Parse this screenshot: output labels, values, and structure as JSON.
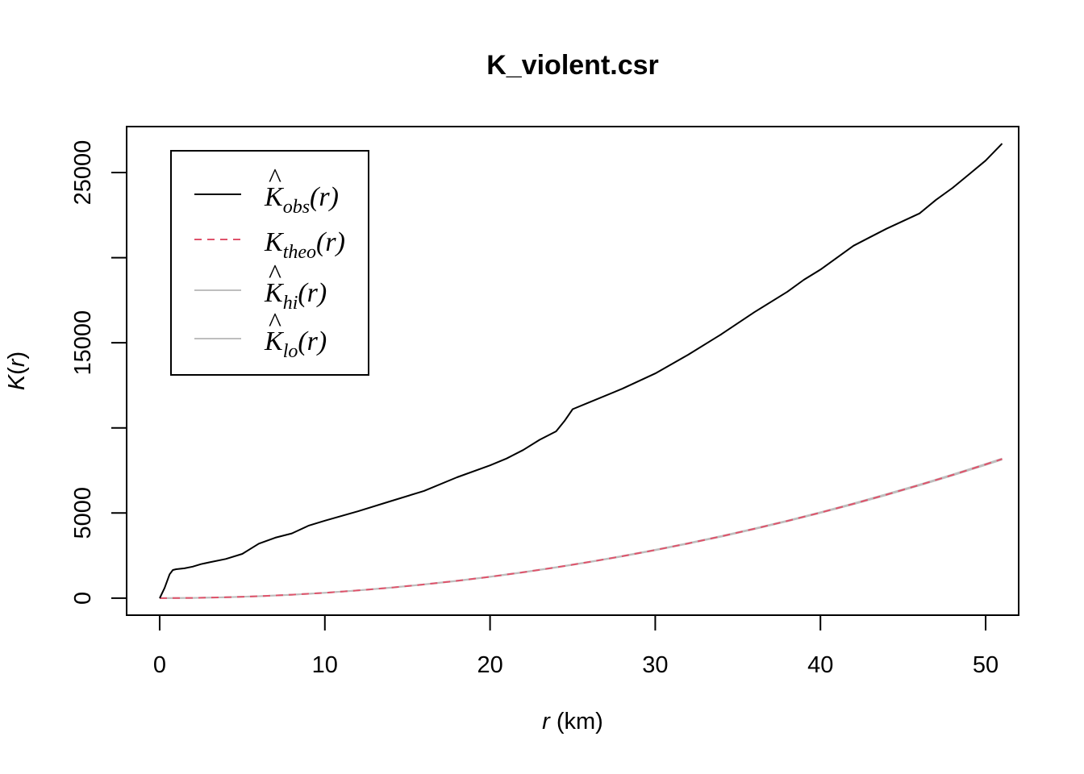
{
  "chart_data": {
    "type": "line",
    "title": "K_violent.csr",
    "xlabel": {
      "var": "r",
      "unit": " (km)"
    },
    "ylabel": {
      "func": "K",
      "open": "(",
      "var": "r",
      "close": ")"
    },
    "xlim": [
      -2,
      52
    ],
    "ylim": [
      -1000,
      27700
    ],
    "x_ticks": [
      0,
      10,
      20,
      30,
      40,
      50
    ],
    "y_ticks": [
      0,
      5000,
      15000,
      25000
    ],
    "y_minor_ticks": [
      10000,
      20000
    ],
    "legend_position": "top-left",
    "grid": false,
    "series": [
      {
        "id": "obs",
        "legend": {
          "hat": true,
          "base": "K",
          "sub": "obs",
          "arg": "(r)"
        },
        "color": "#000000",
        "dash": "",
        "x": [
          0,
          0.3,
          0.6,
          0.8,
          1,
          1.5,
          2,
          2.5,
          3,
          4,
          5,
          5.5,
          6,
          7,
          8,
          9,
          10,
          12,
          14,
          16,
          18,
          20,
          21,
          22,
          23,
          24,
          24.5,
          25,
          26,
          28,
          30,
          32,
          34,
          36,
          38,
          39,
          40,
          42,
          43,
          44,
          46,
          47,
          48,
          49,
          50,
          51
        ],
        "y": [
          0,
          600,
          1400,
          1650,
          1700,
          1750,
          1850,
          2000,
          2100,
          2300,
          2600,
          2900,
          3200,
          3550,
          3800,
          4250,
          4550,
          5100,
          5700,
          6300,
          7100,
          7800,
          8200,
          8700,
          9300,
          9800,
          10400,
          11100,
          11500,
          12300,
          13200,
          14300,
          15500,
          16800,
          18000,
          18700,
          19300,
          20700,
          21200,
          21700,
          22600,
          23400,
          24100,
          24900,
          25700,
          26700
        ]
      },
      {
        "id": "theo",
        "legend": {
          "hat": false,
          "base": "K",
          "sub": "theo",
          "arg": "(r)"
        },
        "color": "#df536b",
        "dash": "9 7",
        "x": [
          0,
          2,
          4,
          6,
          8,
          10,
          12,
          14,
          16,
          18,
          20,
          22,
          24,
          26,
          28,
          30,
          32,
          34,
          36,
          38,
          40,
          42,
          44,
          46,
          48,
          50,
          51
        ],
        "y": [
          0,
          12.6,
          50.3,
          113.1,
          201.1,
          314.2,
          452.4,
          615.8,
          804.2,
          1017.9,
          1256.6,
          1520.5,
          1809.6,
          2123.7,
          2463,
          2827.4,
          3217,
          3631.7,
          4071.5,
          4536.5,
          5026.5,
          5541.8,
          6082.1,
          6647.6,
          7238.2,
          7854,
          8171.3
        ]
      },
      {
        "id": "hi",
        "legend": {
          "hat": true,
          "base": "K",
          "sub": "hi",
          "arg": "(r)"
        },
        "color": "#bebebe",
        "dash": "",
        "x": [
          0,
          2,
          4,
          6,
          8,
          10,
          12,
          14,
          16,
          18,
          20,
          22,
          24,
          26,
          28,
          30,
          32,
          34,
          36,
          38,
          40,
          42,
          44,
          46,
          48,
          50,
          51
        ],
        "y": [
          0,
          13,
          51,
          114,
          203,
          317,
          456,
          620,
          810,
          1025,
          1265,
          1530,
          1820,
          2136,
          2476,
          2842,
          3233,
          3649,
          4090,
          4556,
          5048,
          5565,
          6107,
          6674,
          7267,
          7885,
          8203
        ]
      },
      {
        "id": "lo",
        "legend": {
          "hat": true,
          "base": "K",
          "sub": "lo",
          "arg": "(r)"
        },
        "color": "#bebebe",
        "dash": "",
        "x": [
          0,
          2,
          4,
          6,
          8,
          10,
          12,
          14,
          16,
          18,
          20,
          22,
          24,
          26,
          28,
          30,
          32,
          34,
          36,
          38,
          40,
          42,
          44,
          46,
          48,
          50,
          51
        ],
        "y": [
          0,
          12,
          49,
          112,
          199,
          311,
          448,
          611,
          798,
          1010,
          1248,
          1511,
          1799,
          2112,
          2450,
          2813,
          3201,
          3614,
          4053,
          4517,
          5005,
          5519,
          6057,
          6621,
          7209,
          7823,
          8140
        ]
      }
    ]
  }
}
